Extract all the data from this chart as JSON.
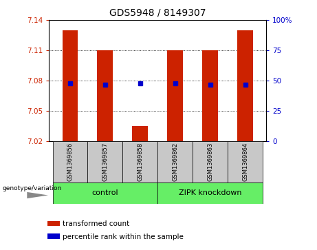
{
  "title": "GDS5948 / 8149307",
  "samples": [
    "GSM1369856",
    "GSM1369857",
    "GSM1369858",
    "GSM1369862",
    "GSM1369863",
    "GSM1369864"
  ],
  "red_values": [
    7.13,
    7.11,
    7.035,
    7.11,
    7.11,
    7.13
  ],
  "blue_values": [
    7.077,
    7.076,
    7.077,
    7.077,
    7.076,
    7.076
  ],
  "ymin": 7.02,
  "ymax": 7.14,
  "yticks_left": [
    7.02,
    7.05,
    7.08,
    7.11,
    7.14
  ],
  "yticks_right": [
    0,
    25,
    50,
    75,
    100
  ],
  "baseline": 7.02,
  "bar_color": "#CC2200",
  "dot_color": "#0000CC",
  "group1_label": "control",
  "group2_label": "ZIPK knockdown",
  "group1_indices": [
    0,
    1,
    2
  ],
  "group2_indices": [
    3,
    4,
    5
  ],
  "group_color": "#66EE66",
  "label_color_left": "#CC2200",
  "label_color_right": "#0000CC",
  "bar_width": 0.45,
  "legend_red_label": "transformed count",
  "legend_blue_label": "percentile rank within the sample",
  "background_plot": "#FFFFFF",
  "background_sample": "#C8C8C8",
  "genotype_label": "genotype/variation"
}
